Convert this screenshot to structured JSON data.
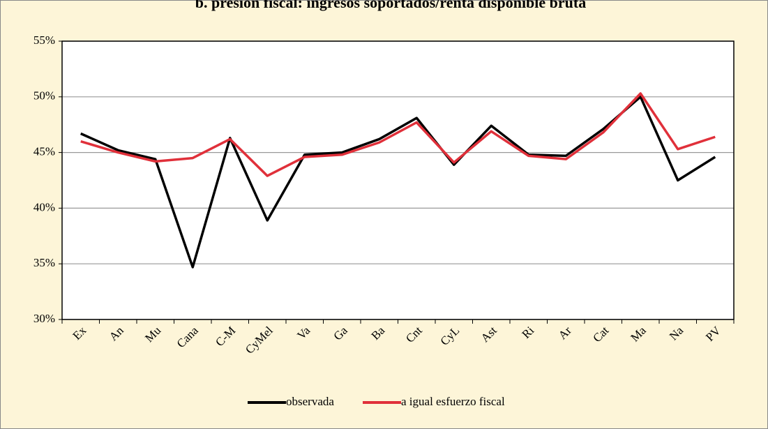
{
  "chart_data": {
    "type": "line",
    "title": "b. presión fiscal: ingresos soportados/renta disponible bruta",
    "categories": [
      "Ex",
      "An",
      "Mu",
      "Cana",
      "C-M",
      "CyMel",
      "Va",
      "Ga",
      "Ba",
      "Cnt",
      "CyL",
      "Ast",
      "Ri",
      "Ar",
      "Cat",
      "Ma",
      "Na",
      "PV"
    ],
    "series": [
      {
        "name": "observada",
        "color": "#000000",
        "values": [
          46.7,
          45.2,
          44.4,
          34.7,
          46.3,
          38.9,
          44.8,
          45.0,
          46.2,
          48.1,
          43.9,
          47.4,
          44.8,
          44.7,
          47.1,
          50.0,
          42.5,
          44.6
        ]
      },
      {
        "name": "a igual esfuerzo fiscal",
        "color": "#e0303a",
        "values": [
          46.0,
          45.0,
          44.2,
          44.5,
          46.2,
          42.9,
          44.6,
          44.8,
          45.9,
          47.7,
          44.1,
          46.9,
          44.7,
          44.4,
          46.8,
          50.3,
          45.3,
          46.4
        ]
      }
    ],
    "ylim": [
      30,
      55
    ],
    "yticks": [
      {
        "value": 30,
        "label": "30%"
      },
      {
        "value": 35,
        "label": "35%"
      },
      {
        "value": 40,
        "label": "40%"
      },
      {
        "value": 45,
        "label": "45%"
      },
      {
        "value": 50,
        "label": "50%"
      },
      {
        "value": 55,
        "label": "55%"
      }
    ],
    "grid": true,
    "legend": "bottom"
  }
}
